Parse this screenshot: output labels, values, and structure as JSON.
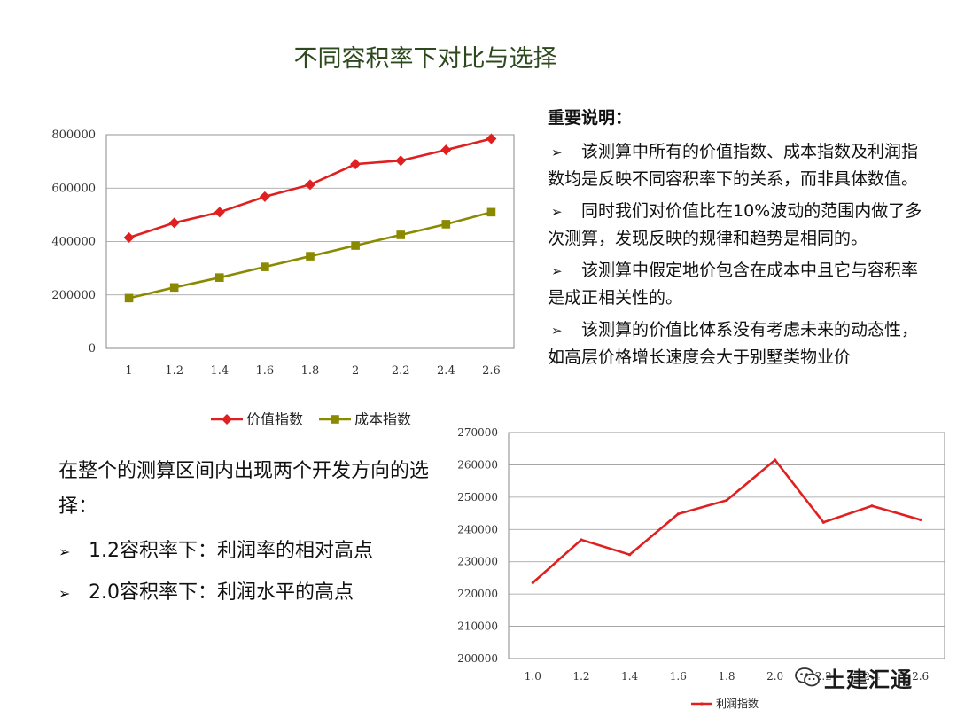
{
  "title": "不同容积率下对比与选择",
  "notes": {
    "heading": "重要说明：",
    "items": [
      "该测算中所有的价值指数、成本指数及利润指数均是反映不同容积率下的关系，而非具体数值。",
      "同时我们对价值比在10%波动的范围内做了多次测算，发现反映的规律和趋势是相同的。",
      "该测算中假定地价包含在成本中且它与容积率是成正相关性的。",
      "该测算的价值比体系没有考虑未来的动态性，如高层价格增长速度会大于别墅类物业价"
    ]
  },
  "summary": {
    "intro": "在整个的测算区间内出现两个开发方向的选择：",
    "items": [
      "1.2容积率下：利润率的相对高点",
      "2.0容积率下：利润水平的高点"
    ]
  },
  "watermark": {
    "text": "土建汇通",
    "icon": "wechat-icon"
  },
  "bullet_glyph": "➢",
  "chart_data": [
    {
      "type": "line",
      "categories": [
        "1",
        "1.2",
        "1.4",
        "1.6",
        "1.8",
        "2",
        "2.2",
        "2.4",
        "2.6"
      ],
      "ylim": [
        0,
        800000
      ],
      "yticks": [
        "0",
        "200000",
        "400000",
        "600000",
        "800000"
      ],
      "grid": true,
      "legend_position": "bottom",
      "series": [
        {
          "name": "价值指数",
          "color": "#e02020",
          "marker": "diamond",
          "values": [
            415000,
            470000,
            510000,
            568000,
            613000,
            690000,
            703000,
            743000,
            785000
          ]
        },
        {
          "name": "成本指数",
          "color": "#8a8a00",
          "marker": "square",
          "values": [
            188000,
            228000,
            265000,
            305000,
            345000,
            385000,
            425000,
            465000,
            510000
          ]
        }
      ]
    },
    {
      "type": "line",
      "categories": [
        "1.0",
        "1.2",
        "1.4",
        "1.6",
        "1.8",
        "2.0",
        "2.2",
        "2.4",
        "2.6"
      ],
      "ylim": [
        200000,
        270000
      ],
      "yticks": [
        "200000",
        "210000",
        "220000",
        "230000",
        "240000",
        "250000",
        "260000",
        "270000"
      ],
      "grid": true,
      "legend_position": "bottom",
      "series": [
        {
          "name": "利润指数",
          "color": "#e02020",
          "marker": "none",
          "values": [
            223500,
            236800,
            232200,
            244800,
            249000,
            261500,
            242200,
            247300,
            243000
          ]
        }
      ]
    }
  ]
}
